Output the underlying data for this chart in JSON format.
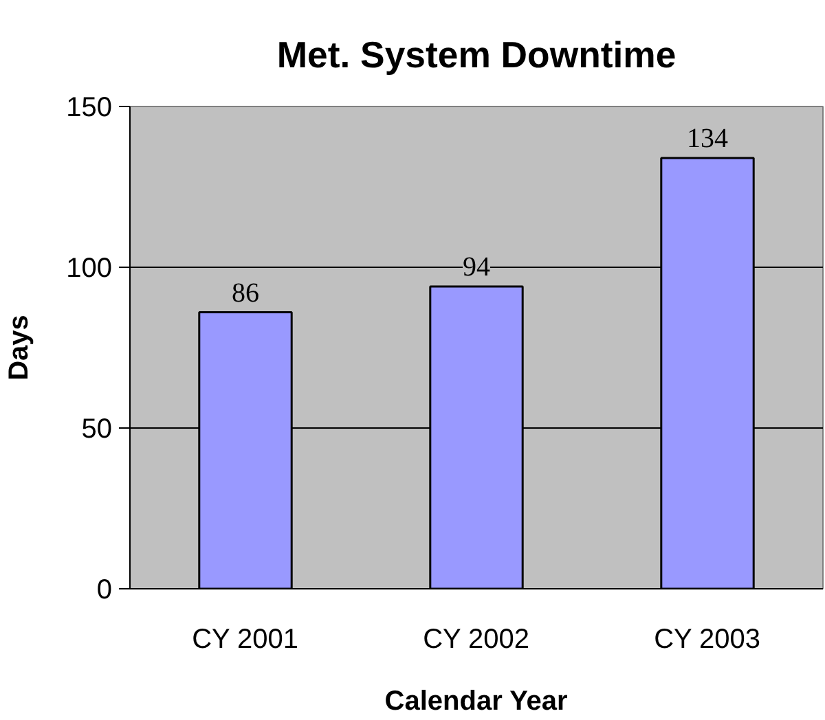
{
  "chart_data": {
    "type": "bar",
    "title": "Met. System Downtime",
    "xlabel": "Calendar Year",
    "ylabel": "Days",
    "categories": [
      "CY 2001",
      "CY 2002",
      "CY 2003"
    ],
    "values": [
      86,
      94,
      134
    ],
    "color": "#9999ff",
    "ylim": [
      0,
      150
    ],
    "yticks": [
      0,
      50,
      100,
      150
    ],
    "grid": "y",
    "data_labels": true
  }
}
